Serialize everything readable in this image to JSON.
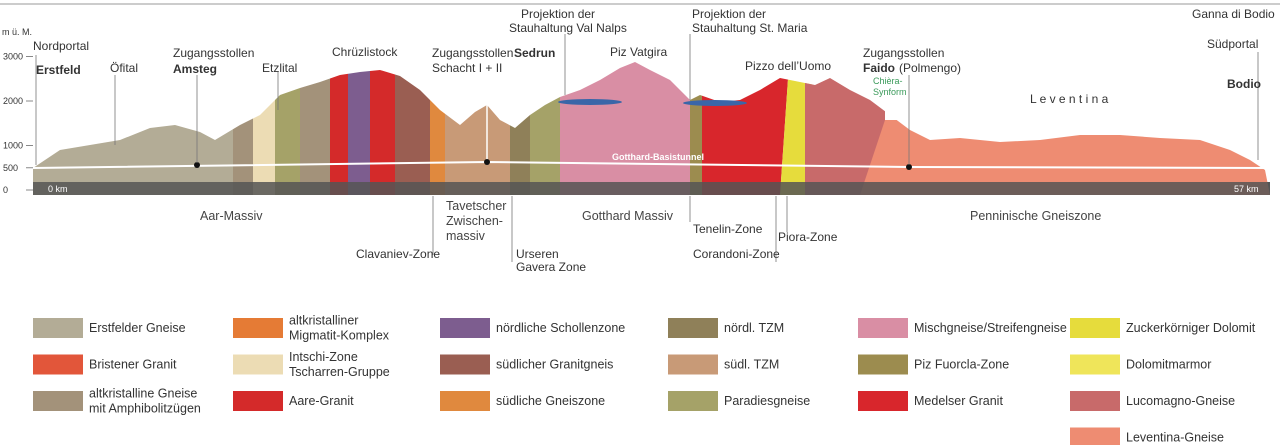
{
  "axis": {
    "unit": "m ü. M.",
    "ticks": [
      3000,
      2000,
      1000,
      500,
      0
    ]
  },
  "profile": {
    "nordportal": "Nordportal",
    "erstfeld": "Erstfeld",
    "oefital": "Öfital",
    "amsteg_1": "Zugangsstollen",
    "amsteg_2": "Amsteg",
    "etzlital": "Etzlital",
    "chruezlistock": "Chrüzlistock",
    "sedrun_1": "Zugangsstollen",
    "sedrun_2": "Schacht I + II",
    "sedrun_3": "Sedrun",
    "nalps": [
      "Projektion der",
      "Stauhaltung Val Nalps"
    ],
    "vatgira": "Piz Vatgira",
    "maria": [
      "Projektion der",
      "Stauhaltung St. Maria"
    ],
    "uomo": "Pizzo dell’Uomo",
    "faido_1": "Zugangsstollen",
    "faido_2": "Faido",
    "faido_3": "(Polmengo)",
    "chiera": [
      "Chièra-",
      "Synform"
    ],
    "leventina": "L e v e n t i n a",
    "ganna": "Ganna di Bodio",
    "suedportal": "Südportal",
    "bodio": "Bodio",
    "tunnel": "Gotthard-Basistunnel",
    "km_start": "0 km",
    "km_end": "57 km"
  },
  "zones": {
    "aar": "Aar-Massiv",
    "tavetsch": [
      "Tavetscher",
      "Zwischen-",
      "massiv"
    ],
    "gotthard": "Gotthard Massiv",
    "pennin": "Penninische Gneiszone",
    "clavaniev": "Clavaniev-Zone",
    "urseren": "Urseren",
    "gavera": "Gavera Zone",
    "tenelin": "Tenelin-Zone",
    "corandoni": "Corandoni-Zone",
    "piora": "Piora-Zone"
  },
  "legend": [
    [
      {
        "label": [
          "Erstfelder Gneise"
        ],
        "color": "#b3ac96"
      },
      {
        "label": [
          "Bristener Granit"
        ],
        "color": "#e2563a"
      },
      {
        "label": [
          "altkristalline Gneise",
          "mit Amphibolitzügen"
        ],
        "color": "#a3927a"
      }
    ],
    [
      {
        "label": [
          "altkristalliner",
          "Migmatit-Komplex"
        ],
        "color": "#e57b35"
      },
      {
        "label": [
          "Intschi-Zone",
          "Tscharren-Gruppe"
        ],
        "color": "#ecdcb4"
      },
      {
        "label": [
          "Aare-Granit"
        ],
        "color": "#d42a2a"
      }
    ],
    [
      {
        "label": [
          "nördliche Schollenzone"
        ],
        "color": "#7d5d8f"
      },
      {
        "label": [
          "südlicher Granitgneis"
        ],
        "color": "#9a5e52"
      },
      {
        "label": [
          "südliche Gneiszone"
        ],
        "color": "#e0893e"
      }
    ],
    [
      {
        "label": [
          "nördl. TZM"
        ],
        "color": "#8f8059"
      },
      {
        "label": [
          "südl. TZM"
        ],
        "color": "#c89a77"
      },
      {
        "label": [
          "Paradiesgneise"
        ],
        "color": "#a5a268"
      }
    ],
    [
      {
        "label": [
          "Mischgneise/Streifengneise"
        ],
        "color": "#d98ea4"
      },
      {
        "label": [
          "Piz Fuorcla-Zone"
        ],
        "color": "#9c8c4f"
      },
      {
        "label": [
          "Medelser Granit"
        ],
        "color": "#d8262c"
      }
    ],
    [
      {
        "label": [
          "Zuckerkörniger Dolomit"
        ],
        "color": "#e6dc3c"
      },
      {
        "label": [
          "Dolomitmarmor"
        ],
        "color": "#efe55a"
      },
      {
        "label": [
          "Lucomagno-Gneise"
        ],
        "color": "#c86a6a"
      },
      {
        "label": [
          "Leventina-Gneise"
        ],
        "color": "#ee8c72"
      }
    ]
  ]
}
